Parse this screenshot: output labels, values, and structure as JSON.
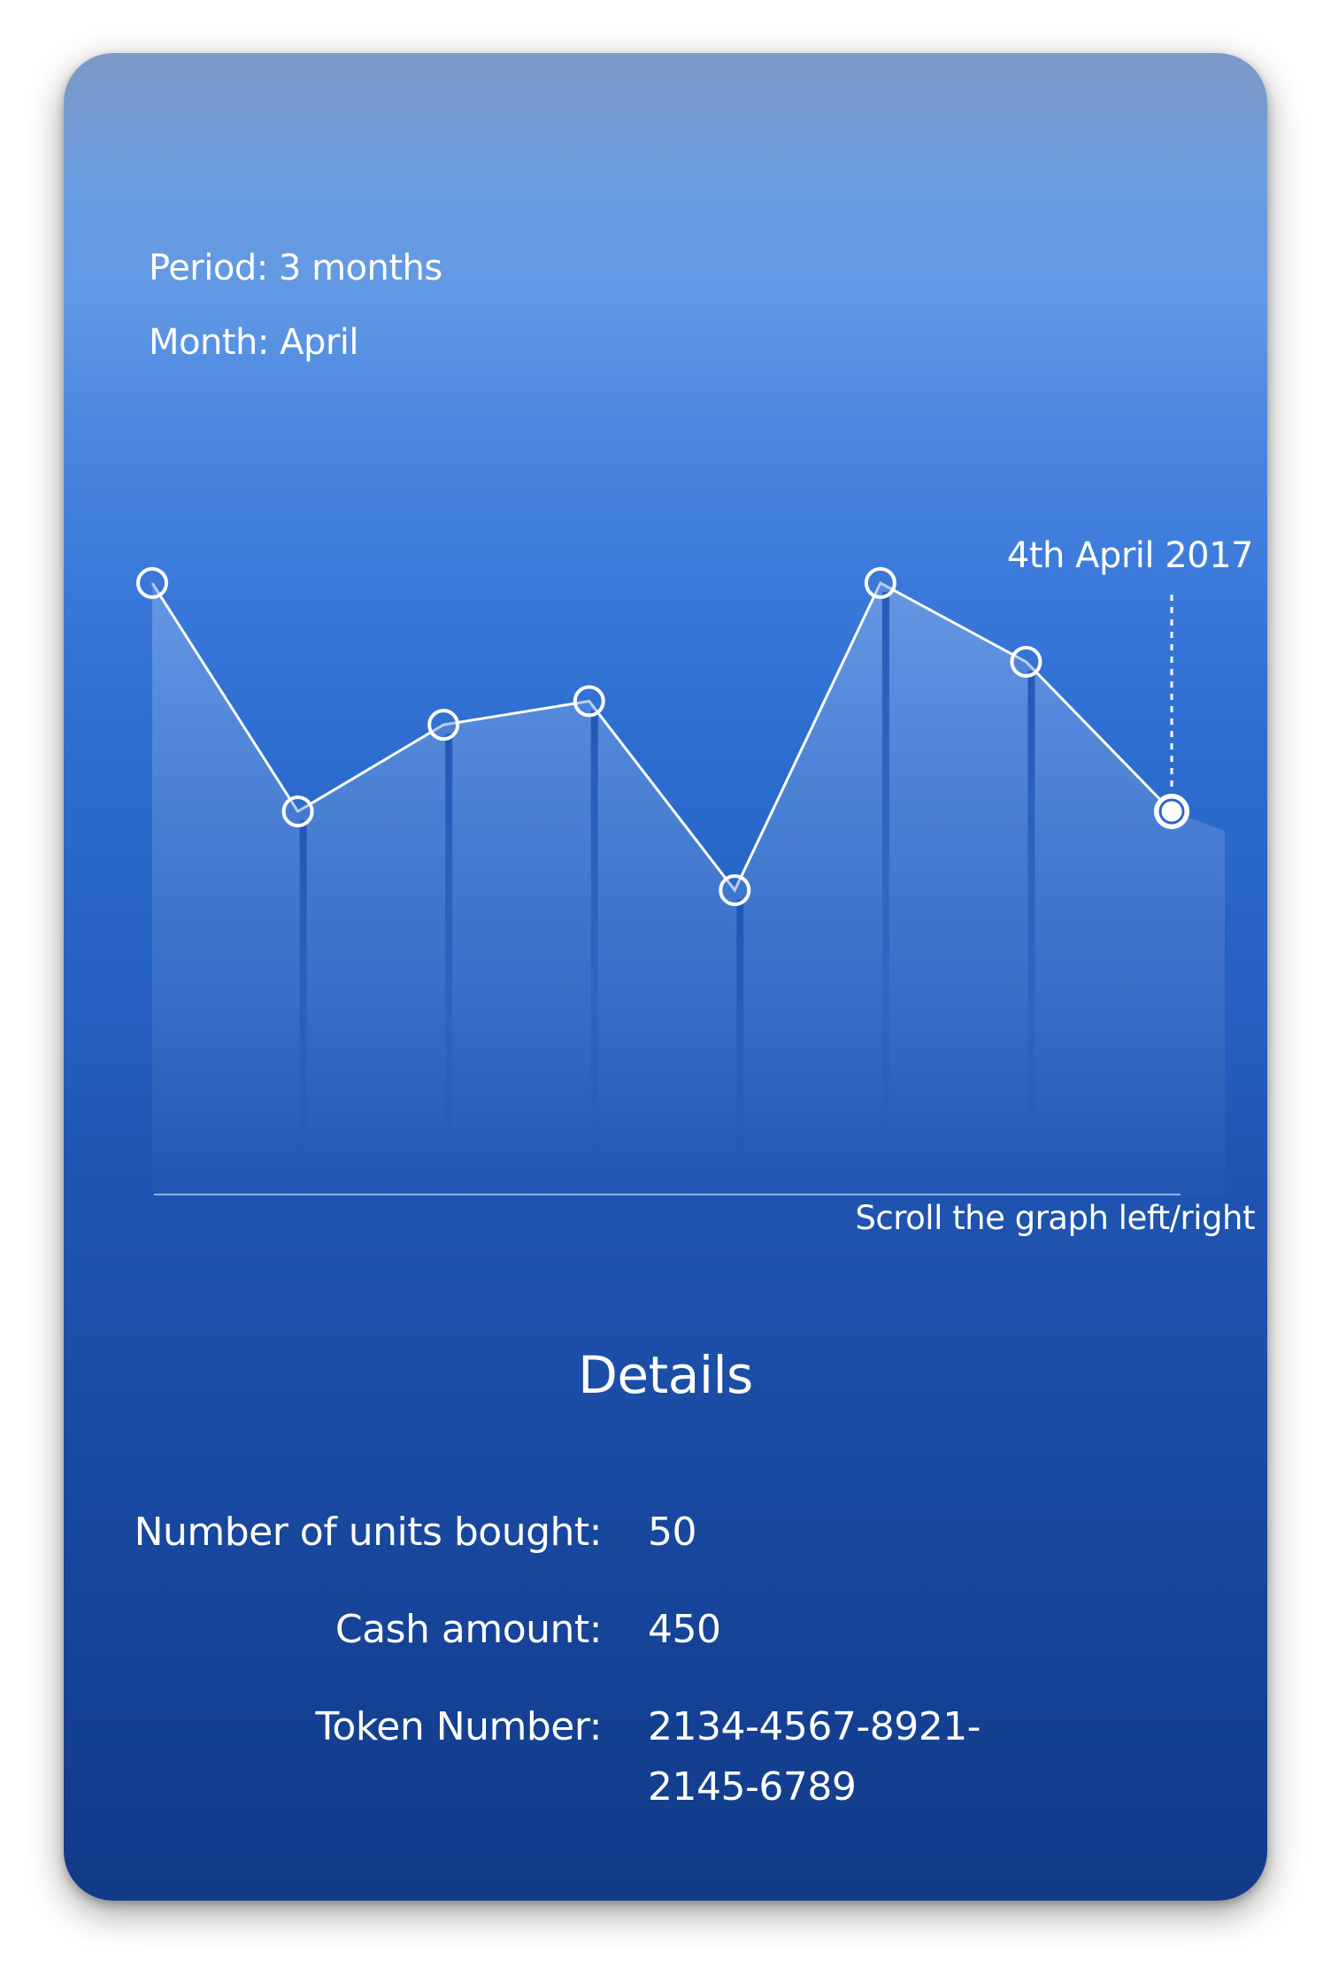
{
  "header": {
    "period_label": "Period:",
    "period_value": "3 months",
    "month_label": "Month:",
    "month_value": "April"
  },
  "chart": {
    "selected_date": "4th April 2017",
    "scroll_hint": "Scroll the graph left/right",
    "colors": {
      "line": "#ffffff",
      "marker_fill": "transparent",
      "selected_marker_fill": "#ffffff",
      "area_fill": "rgba(255,255,255,0.18)"
    }
  },
  "chart_data": {
    "type": "line",
    "x": [
      1,
      2,
      3,
      4,
      5,
      6,
      7,
      8
    ],
    "values": [
      79,
      50,
      61,
      64,
      40,
      79,
      69,
      50
    ],
    "ylim": [
      0,
      100
    ],
    "selected_index": 7,
    "grid": false,
    "title": "",
    "xlabel": "",
    "ylabel": ""
  },
  "details": {
    "title": "Details",
    "rows": [
      {
        "label": "Number of units bought:",
        "value": "50"
      },
      {
        "label": "Cash amount:",
        "value": "450"
      },
      {
        "label": "Token Number:",
        "value": "2134-4567-8921-2145-6789"
      }
    ]
  }
}
